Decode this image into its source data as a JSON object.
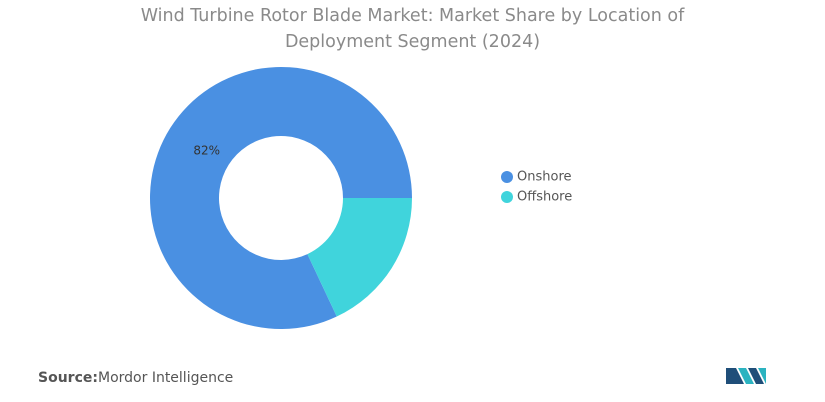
{
  "chart_data": {
    "type": "donut",
    "title": "Wind Turbine Rotor Blade Market: Market Share by Location of Deployment Segment (2024)",
    "categories": [
      "Onshore",
      "Offshore"
    ],
    "values": [
      82,
      18
    ],
    "value_labels": [
      "82%",
      null
    ],
    "colors": [
      "#4a90e2",
      "#40d4dc"
    ],
    "legend": "right",
    "source": {
      "label": "Source:",
      "text": "Mordor Intelligence"
    }
  }
}
